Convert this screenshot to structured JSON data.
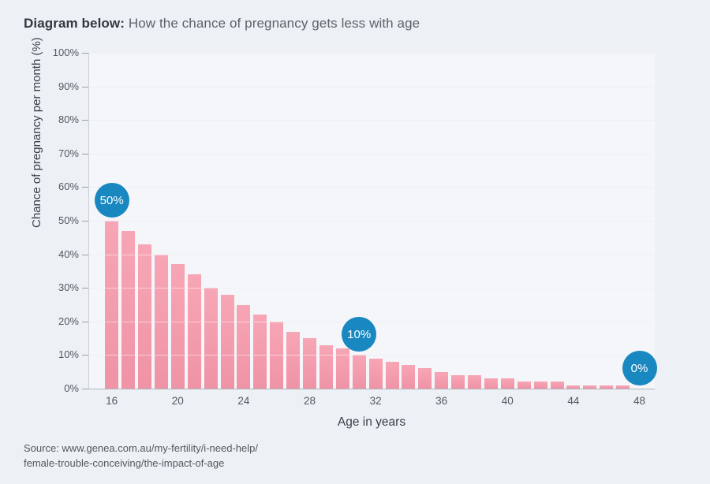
{
  "title": {
    "lead": "Diagram below:",
    "rest": "How the chance of pregnancy gets less with age"
  },
  "source": {
    "line1": "Source: www.genea.com.au/my-fertility/i-need-help/",
    "line2": "female-trouble-conceiving/the-impact-of-age"
  },
  "chart_data": {
    "type": "bar",
    "title": "How the chance of pregnancy gets less with age",
    "xlabel": "Age in years",
    "ylabel": "Chance of pregnancy per month (%)",
    "x": [
      16,
      17,
      18,
      19,
      20,
      21,
      22,
      23,
      24,
      25,
      26,
      27,
      28,
      29,
      30,
      31,
      32,
      33,
      34,
      35,
      36,
      37,
      38,
      39,
      40,
      41,
      42,
      43,
      44,
      45,
      46,
      47,
      48
    ],
    "values": [
      50,
      47,
      43,
      40,
      37,
      34,
      30,
      28,
      25,
      22,
      20,
      17,
      15,
      13,
      12,
      10,
      9,
      8,
      7,
      6,
      5,
      4,
      4,
      3,
      3,
      2,
      2,
      2,
      1,
      1,
      1,
      1,
      0
    ],
    "ylim": [
      0,
      100
    ],
    "ytick_step": 10,
    "ytick_labels": [
      "0%",
      "10%",
      "20%",
      "30%",
      "40%",
      "50%",
      "60%",
      "70%",
      "80%",
      "90%",
      "100%"
    ],
    "xtick_values": [
      16,
      20,
      24,
      28,
      32,
      36,
      40,
      44,
      48
    ],
    "grid": true,
    "legend": "none",
    "callouts": [
      {
        "x": 16,
        "label": "50%"
      },
      {
        "x": 31,
        "label": "10%"
      },
      {
        "x": 48,
        "label": "0%"
      }
    ],
    "colors": {
      "bar_top": "#f7a6b6",
      "bar_bottom": "#ef93a6",
      "badge_blue": "#1987c0",
      "page_background": "#edf1f6",
      "plot_background": "#f4f6f9"
    }
  }
}
